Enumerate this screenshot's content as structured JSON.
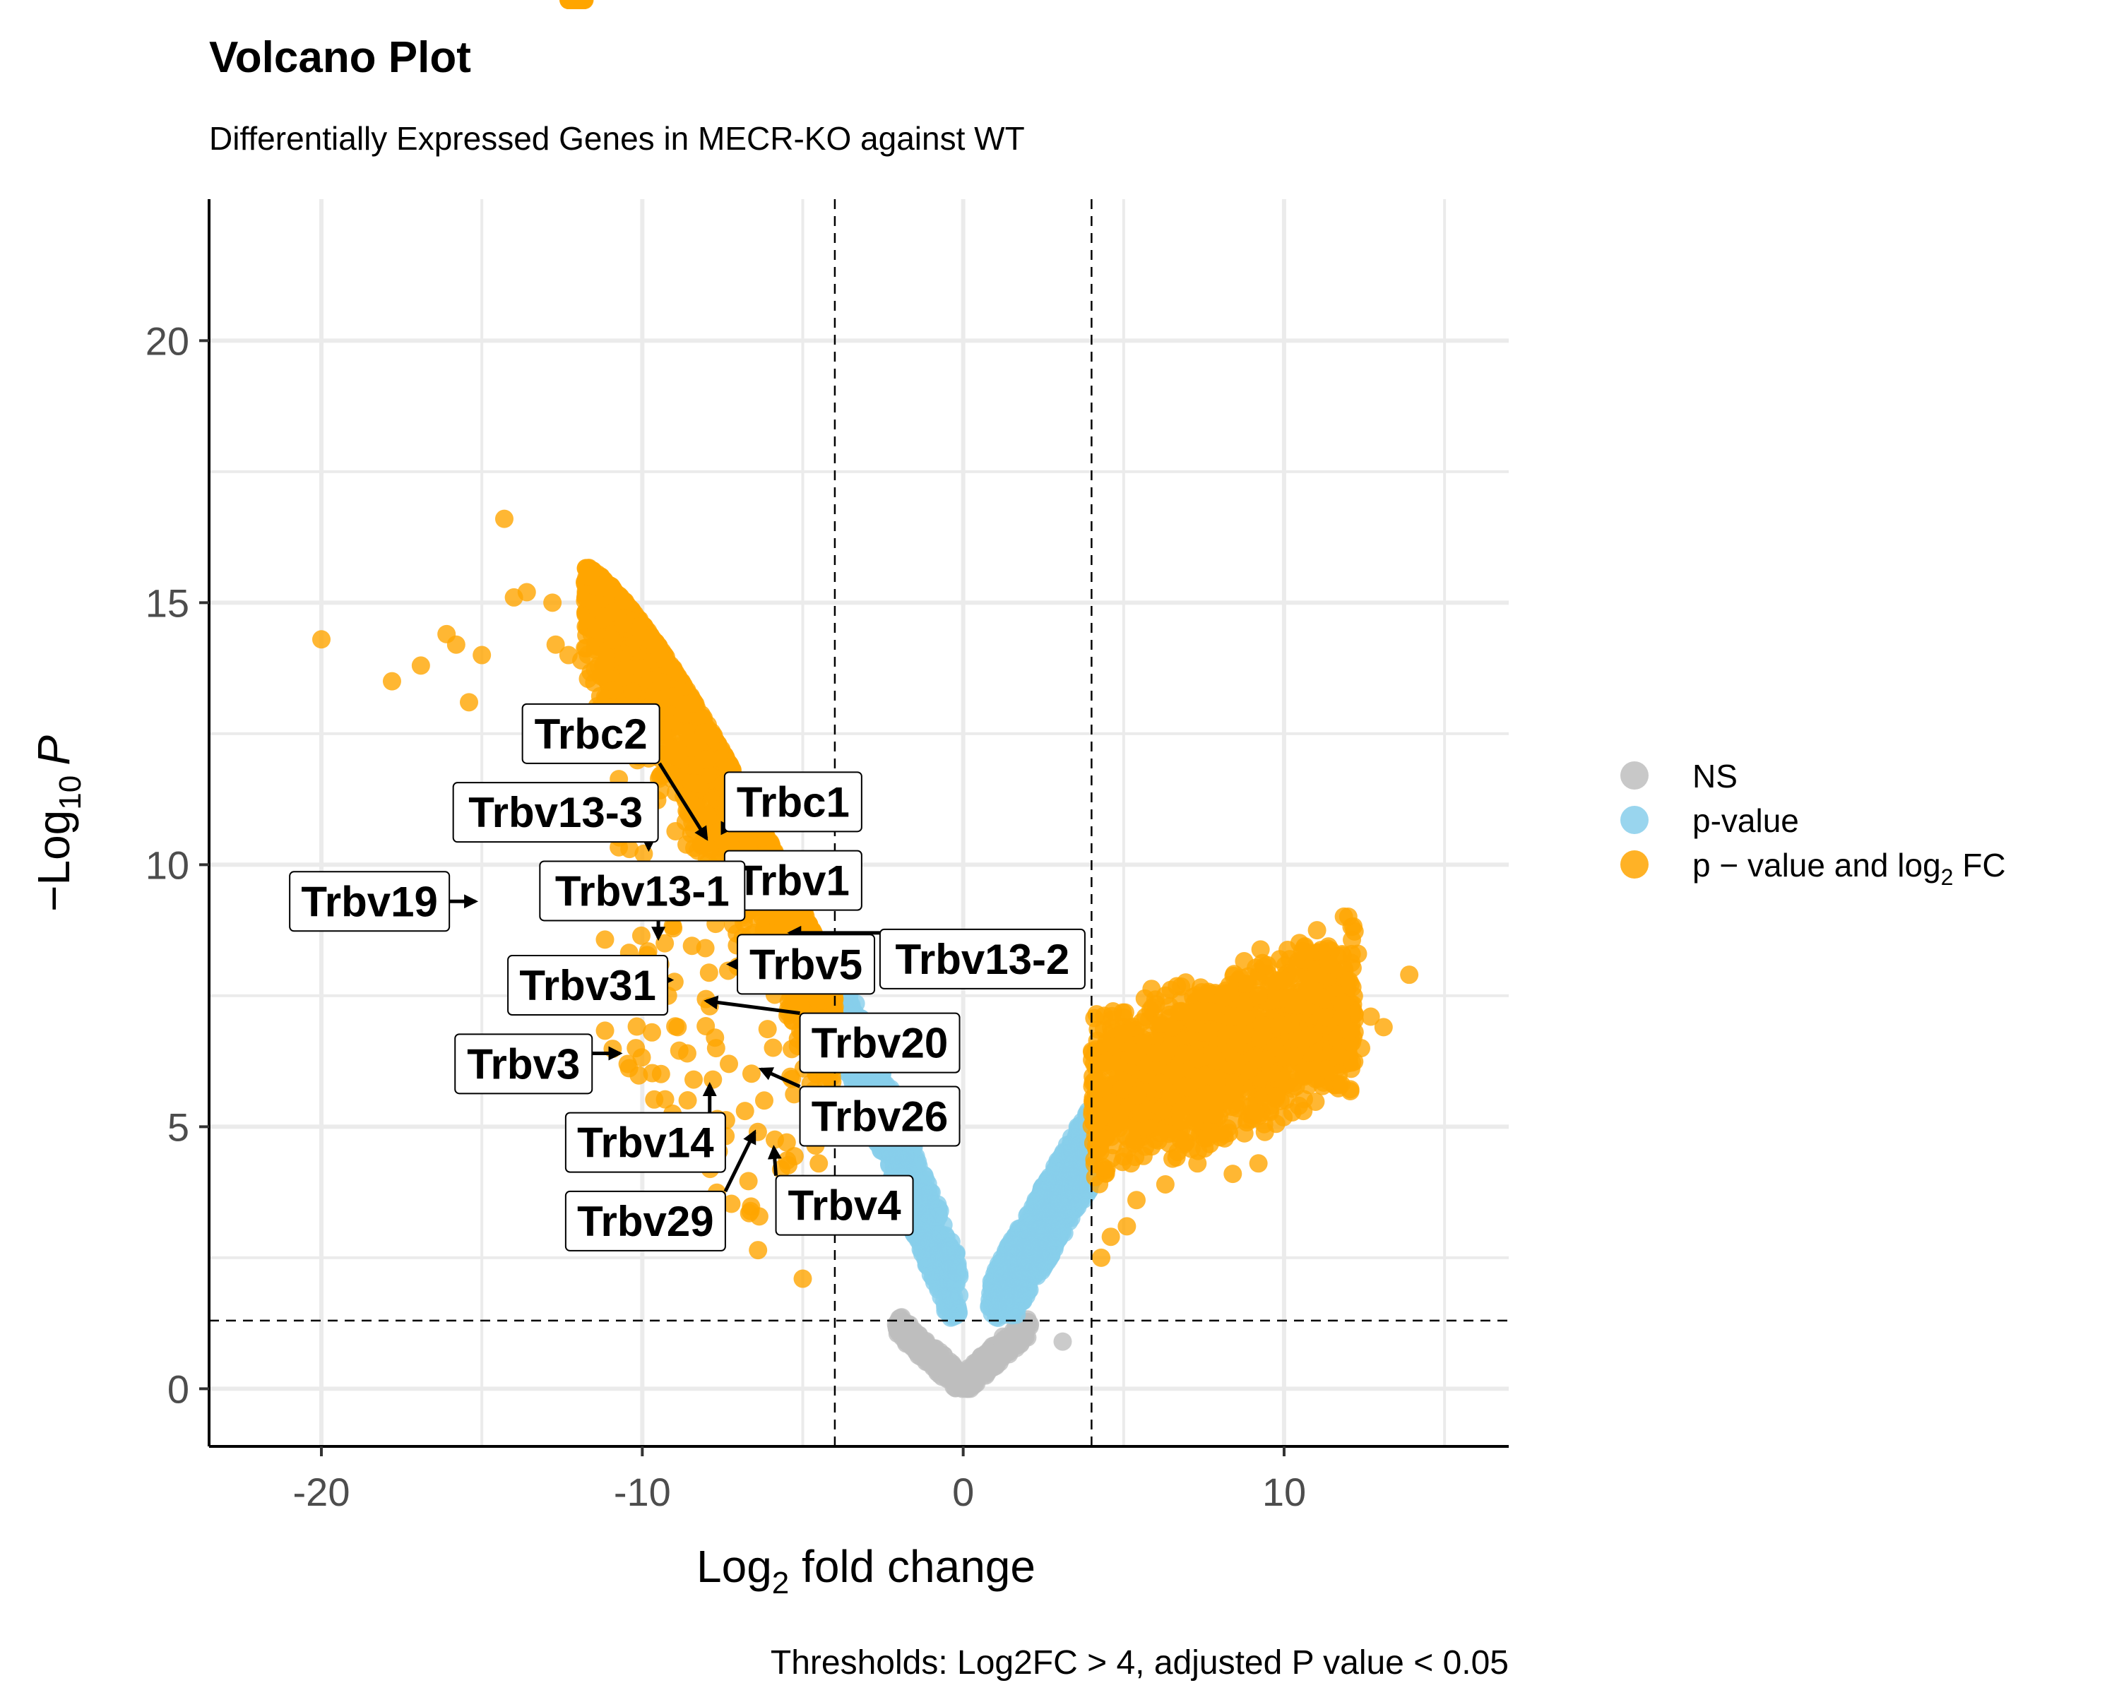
{
  "chart_data": {
    "type": "scatter",
    "title": "Volcano Plot",
    "subtitle": "Differentially Expressed Genes in MECR-KO against WT",
    "xlabel_main": "Log",
    "xlabel_sub": "2",
    "xlabel_rest": " fold change",
    "ylabel_main": "−Log",
    "ylabel_sub": "10",
    "ylabel_p": "P",
    "caption": "Thresholds: Log2FC > 4, adjusted P value < 0.05",
    "xlim": [
      -23.5,
      17
    ],
    "ylim": [
      -1.1,
      22.7
    ],
    "x_ticks": [
      -20,
      -10,
      0,
      10
    ],
    "x_tick_labels": [
      "-20",
      "-10",
      "0",
      "10"
    ],
    "y_ticks": [
      0,
      5,
      10,
      15,
      20
    ],
    "y_tick_labels": [
      "0",
      "5",
      "10",
      "15",
      "20"
    ],
    "grid": true,
    "thresholds": {
      "log2fc": [
        -4,
        4
      ],
      "neg_log10_p": 1.3
    },
    "legend": {
      "position": "right",
      "entries": [
        {
          "key": "ns",
          "label": "NS",
          "color": "#bebebe"
        },
        {
          "key": "p",
          "label": "p-value",
          "color": "#87ceeb"
        },
        {
          "key": "fc",
          "label_main": "p − value and log",
          "label_sub": "2",
          "label_rest": " FC",
          "color": "#ffa500"
        }
      ]
    },
    "colors": {
      "ns": "#bebebe",
      "p": "#87ceeb",
      "fc": "#ffa500"
    },
    "highlight_points": [
      [
        -20,
        14.3
      ],
      [
        -17.8,
        13.5
      ],
      [
        -16.9,
        13.8
      ],
      [
        -16.1,
        14.4
      ],
      [
        -15.8,
        14.2
      ],
      [
        -15.4,
        13.1
      ],
      [
        -15,
        14
      ],
      [
        -14.3,
        16.6
      ],
      [
        -13.6,
        15.2
      ],
      [
        -14,
        15.1
      ],
      [
        -12.8,
        15
      ],
      [
        -12.7,
        14.2
      ],
      [
        -12.3,
        14
      ],
      [
        -12.4,
        12.4
      ],
      [
        -11,
        13
      ],
      [
        -10.7,
        11
      ],
      [
        -10.4,
        10.3
      ],
      [
        -10,
        9.6
      ],
      [
        -9.8,
        11.2
      ],
      [
        -10.1,
        7.8
      ],
      [
        -9.3,
        8.5
      ],
      [
        -9.2,
        7.5
      ],
      [
        -8.9,
        6.9
      ],
      [
        -8.6,
        6.4
      ],
      [
        -8.4,
        5.9
      ],
      [
        -7.8,
        5.9
      ],
      [
        -7.9,
        7.3
      ],
      [
        -7.7,
        6.5
      ],
      [
        -7.3,
        6.2
      ],
      [
        -6.8,
        5.3
      ],
      [
        -6.4,
        4.9
      ],
      [
        -6.2,
        5.5
      ],
      [
        -5.5,
        4.7
      ],
      [
        -5,
        2.1
      ],
      [
        -4.5,
        4.3
      ],
      [
        -11.9,
        13.9
      ],
      [
        -11.3,
        13.6
      ],
      [
        -10.6,
        14.6
      ],
      [
        -10.4,
        12.6
      ],
      [
        -10.3,
        13.3
      ],
      [
        -11.2,
        12.1
      ],
      [
        -10.2,
        6.5
      ],
      [
        -9.5,
        5.1
      ],
      [
        -9.7,
        6.8
      ],
      [
        -8.8,
        4.7
      ]
    ],
    "right_highlight_points": [
      [
        4.3,
        2.5
      ],
      [
        4.6,
        2.9
      ],
      [
        5.1,
        3.1
      ],
      [
        5.4,
        3.6
      ],
      [
        4.3,
        6.2
      ],
      [
        6,
        6.4
      ],
      [
        6.5,
        6.9
      ],
      [
        7.3,
        7.2
      ],
      [
        8.3,
        7.7
      ],
      [
        9.2,
        7.5
      ],
      [
        10,
        7.8
      ],
      [
        10.7,
        7.6
      ],
      [
        11.4,
        8.1
      ],
      [
        12.3,
        8.3
      ],
      [
        13.9,
        7.9
      ],
      [
        12.7,
        7.1
      ],
      [
        13.1,
        6.9
      ],
      [
        12.4,
        6.5
      ],
      [
        11.3,
        6.1
      ],
      [
        8.4,
        4.1
      ],
      [
        9.2,
        4.3
      ],
      [
        9.4,
        4.9
      ],
      [
        7.3,
        4.3
      ],
      [
        6.3,
        3.9
      ],
      [
        10.6,
        5.3
      ]
    ],
    "gene_labels": [
      {
        "label": "Trbc2",
        "point": [
          -8,
          10.5
        ],
        "box": [
          -11.6,
          12.5
        ]
      },
      {
        "label": "Trbc1",
        "point": [
          -7.2,
          10.7
        ],
        "box": [
          -5.3,
          11.2
        ]
      },
      {
        "label": "Trbv13-3",
        "point": [
          -9.8,
          10.3
        ],
        "box": [
          -12.7,
          11.0
        ]
      },
      {
        "label": "Trbv1",
        "point": [
          -7.1,
          9.7
        ],
        "box": [
          -5.3,
          9.7
        ]
      },
      {
        "label": "Trbv13-1",
        "point": [
          -9.5,
          8.6
        ],
        "box": [
          -10,
          9.5
        ]
      },
      {
        "label": "Trbv19",
        "point": [
          -15.2,
          9.3
        ],
        "box": [
          -18.5,
          9.3
        ]
      },
      {
        "label": "Trbv13-2",
        "point": [
          -5.4,
          8.7
        ],
        "box": [
          0.6,
          8.2
        ]
      },
      {
        "label": "Trbv5",
        "point": [
          -7.3,
          8.1
        ],
        "box": [
          -4.9,
          8.1
        ]
      },
      {
        "label": "Trbv31",
        "point": [
          -9.1,
          7.8
        ],
        "box": [
          -11.7,
          7.7
        ]
      },
      {
        "label": "Trbv20",
        "point": [
          -8,
          7.4
        ],
        "box": [
          -2.6,
          6.6
        ]
      },
      {
        "label": "Trbv3",
        "point": [
          -10.7,
          6.4
        ],
        "box": [
          -13.7,
          6.2
        ]
      },
      {
        "label": "Trbv14",
        "point": [
          -7.9,
          5.8
        ],
        "box": [
          -9.9,
          4.7
        ]
      },
      {
        "label": "Trbv26",
        "point": [
          -6.3,
          6.1
        ],
        "box": [
          -2.6,
          5.2
        ]
      },
      {
        "label": "Trbv29",
        "point": [
          -6.5,
          4.9
        ],
        "box": [
          -9.9,
          3.2
        ]
      },
      {
        "label": "Trbv4",
        "point": [
          -5.9,
          4.6
        ],
        "box": [
          -3.7,
          3.5
        ]
      }
    ]
  }
}
